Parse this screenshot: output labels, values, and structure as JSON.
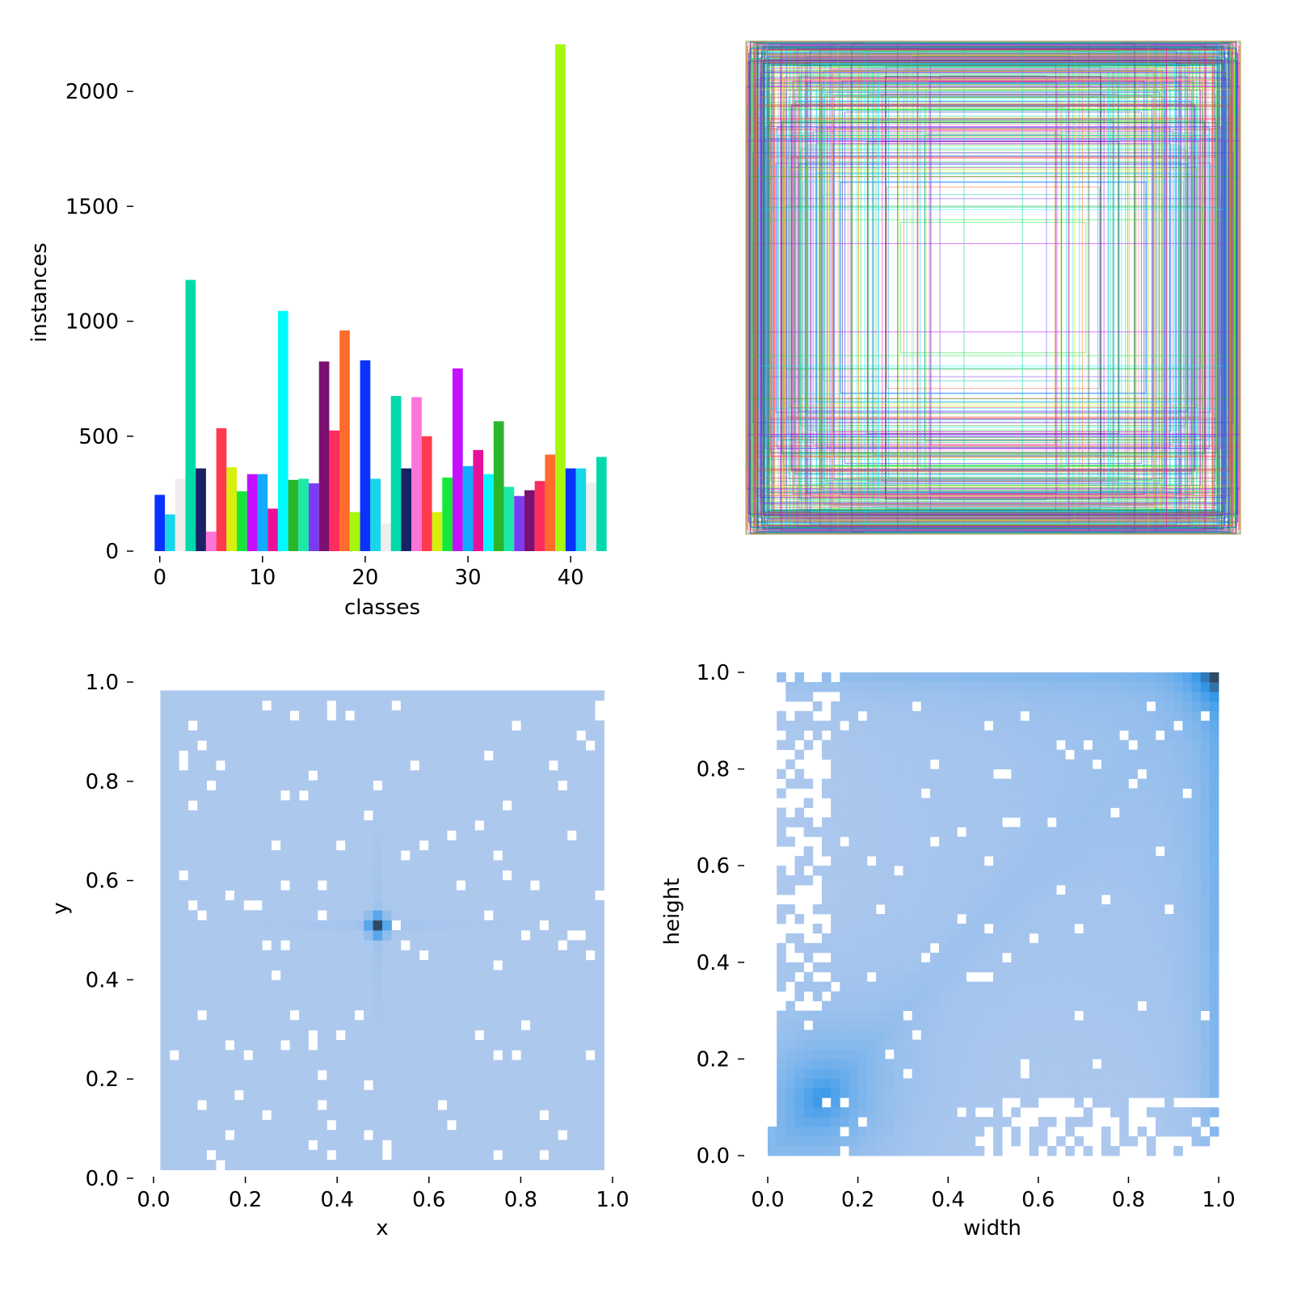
{
  "chart_data": [
    {
      "type": "bar",
      "xlabel": "classes",
      "ylabel": "instances",
      "xlim": [
        -1,
        44
      ],
      "ylim": [
        0,
        2250
      ],
      "xticks": [
        "0",
        "10",
        "20",
        "30",
        "40"
      ],
      "yticks": [
        "0",
        "500",
        "1000",
        "1500",
        "2000"
      ],
      "x": [
        0,
        1,
        2,
        3,
        4,
        5,
        6,
        7,
        8,
        9,
        10,
        11,
        12,
        13,
        14,
        15,
        16,
        17,
        18,
        19,
        20,
        21,
        22,
        23,
        24,
        25,
        26,
        27,
        28,
        29,
        30,
        31,
        32,
        33,
        34,
        35,
        36,
        37,
        38,
        39,
        40,
        41,
        42,
        43
      ],
      "values": [
        245,
        160,
        315,
        1180,
        360,
        85,
        535,
        365,
        260,
        335,
        335,
        185,
        1045,
        310,
        315,
        295,
        825,
        525,
        960,
        170,
        830,
        315,
        120,
        675,
        360,
        670,
        500,
        170,
        320,
        795,
        370,
        440,
        335,
        565,
        280,
        240,
        265,
        305,
        420,
        2205,
        360,
        360,
        300,
        410
      ],
      "colors": [
        "#0a32ff",
        "#18d6e8",
        "#eeeeee",
        "#00d9aa",
        "#1a2266",
        "#ff74d8",
        "#ff3a4e",
        "#d6ef0c",
        "#16e83a",
        "#c510ff",
        "#10aaff",
        "#e8119a",
        "#00fbff",
        "#2ab52a",
        "#1ee8a8",
        "#7a3cf2",
        "#7c1070",
        "#ff2c5e",
        "#ff6b2c",
        "#a6f610",
        "#0a32ff",
        "#18d6e8",
        "#eeeeee",
        "#00d9aa",
        "#1a2266",
        "#ff74d8",
        "#ff3a4e",
        "#d6ef0c",
        "#16e83a",
        "#c510ff",
        "#10aaff",
        "#e8119a",
        "#00fbff",
        "#2ab52a",
        "#1ee8a8",
        "#7a3cf2",
        "#7c1070",
        "#ff2c5e",
        "#ff6b2c",
        "#a6f610",
        "#0a32ff",
        "#18d6e8",
        "#eeeeee",
        "#00d9aa"
      ]
    },
    {
      "type": "other",
      "description_kind": "bounding-box overlay",
      "grid": false,
      "colors": [
        "#0a32ff",
        "#18d6e8",
        "#00d9aa",
        "#1a2266",
        "#ff74d8",
        "#ff3a4e",
        "#d6ef0c",
        "#16e83a",
        "#c510ff",
        "#10aaff",
        "#e8119a",
        "#00fbff",
        "#2ab52a",
        "#7a3cf2",
        "#ff6b2c",
        "#a6f610"
      ]
    },
    {
      "type": "heatmap",
      "xlabel": "x",
      "ylabel": "y",
      "xlim": [
        0,
        1
      ],
      "ylim": [
        0,
        1
      ],
      "xticks": [
        "0.0",
        "0.2",
        "0.4",
        "0.6",
        "0.8",
        "1.0"
      ],
      "yticks": [
        "0.0",
        "0.2",
        "0.4",
        "0.6",
        "0.8",
        "1.0"
      ],
      "bins": 50,
      "peak": [
        0.49,
        0.51
      ],
      "colors": {
        "low": "#adc8ed",
        "mid": "#3498ea",
        "high": "#2e4a66"
      }
    },
    {
      "type": "heatmap",
      "xlabel": "width",
      "ylabel": "height",
      "xlim": [
        0,
        1
      ],
      "ylim": [
        0,
        1
      ],
      "xticks": [
        "0.0",
        "0.2",
        "0.4",
        "0.6",
        "0.8",
        "1.0"
      ],
      "yticks": [
        "0.0",
        "0.2",
        "0.4",
        "0.6",
        "0.8",
        "1.0"
      ],
      "bins": 50,
      "peaks": [
        [
          0.1,
          0.1
        ],
        [
          1.0,
          1.0
        ]
      ],
      "colors": {
        "low": "#adc8ed",
        "mid": "#3498ea",
        "high": "#2e4a66"
      }
    }
  ]
}
